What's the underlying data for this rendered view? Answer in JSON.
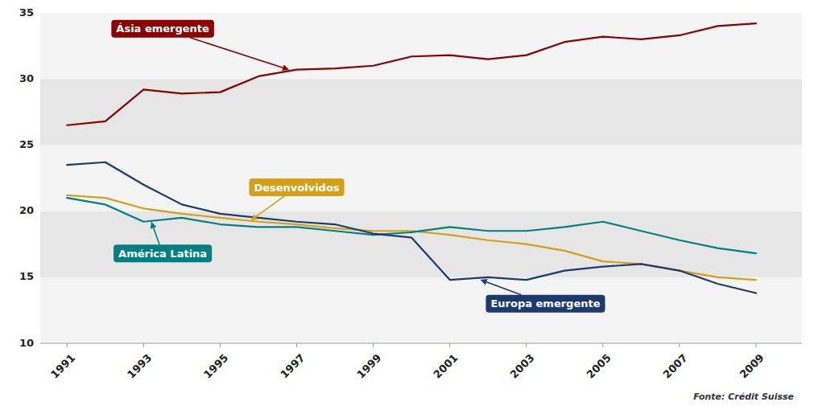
{
  "chart_data": {
    "type": "line",
    "x": [
      1991,
      1992,
      1993,
      1994,
      1995,
      1996,
      1997,
      1998,
      1999,
      2000,
      2001,
      2002,
      2003,
      2004,
      2005,
      2006,
      2007,
      2008,
      2009
    ],
    "series": [
      {
        "name": "Ásia emergente",
        "color": "#8B0000",
        "values": [
          26.5,
          26.8,
          29.2,
          28.9,
          29.0,
          30.2,
          30.7,
          30.8,
          31.0,
          31.7,
          31.8,
          31.5,
          31.8,
          32.8,
          33.2,
          33.0,
          33.3,
          34.0,
          34.2
        ]
      },
      {
        "name": "Desenvolvidos",
        "color": "#D4A017",
        "values": [
          21.2,
          21.0,
          20.2,
          19.8,
          19.5,
          19.2,
          19.0,
          18.7,
          18.5,
          18.5,
          18.2,
          17.8,
          17.5,
          17.0,
          16.2,
          16.0,
          15.5,
          15.0,
          14.8
        ]
      },
      {
        "name": "América Latina",
        "color": "#008080",
        "values": [
          21.0,
          20.5,
          19.2,
          19.5,
          19.0,
          18.8,
          18.8,
          18.5,
          18.2,
          18.4,
          18.8,
          18.5,
          18.5,
          18.8,
          19.2,
          18.5,
          17.8,
          17.2,
          16.8
        ]
      },
      {
        "name": "Europa emergente",
        "color": "#1C3A6E",
        "values": [
          23.5,
          23.7,
          22.0,
          20.5,
          19.8,
          19.5,
          19.2,
          19.0,
          18.3,
          18.0,
          14.8,
          15.0,
          14.8,
          15.5,
          15.8,
          16.0,
          15.5,
          14.5,
          13.8
        ]
      }
    ],
    "xlim": [
      1990.3,
      2010.2
    ],
    "xticks": [
      1991,
      1993,
      1995,
      1997,
      1999,
      2001,
      2003,
      2005,
      2007,
      2009
    ],
    "ylim": [
      10,
      35
    ],
    "yticks": [
      10,
      15,
      20,
      25,
      30,
      35
    ],
    "annotations": [
      {
        "text": "Ásia emergente",
        "color": "#8B0000",
        "x": 1996.8,
        "y": 30.7,
        "text_x": 1993.5,
        "text_y": 33.8
      },
      {
        "text": "Desenvolvidos",
        "color": "#D4A017",
        "x": 1995.8,
        "y": 19.3,
        "text_x": 1997.0,
        "text_y": 21.8
      },
      {
        "text": "América Latina",
        "color": "#008080",
        "x": 1993.2,
        "y": 19.2,
        "text_x": 1993.5,
        "text_y": 16.8
      },
      {
        "text": "Europa emergente",
        "color": "#1C3A6E",
        "x": 2001.8,
        "y": 14.8,
        "text_x": 2003.5,
        "text_y": 13.0
      }
    ],
    "source": "Fonte: Crédit Suisse"
  }
}
